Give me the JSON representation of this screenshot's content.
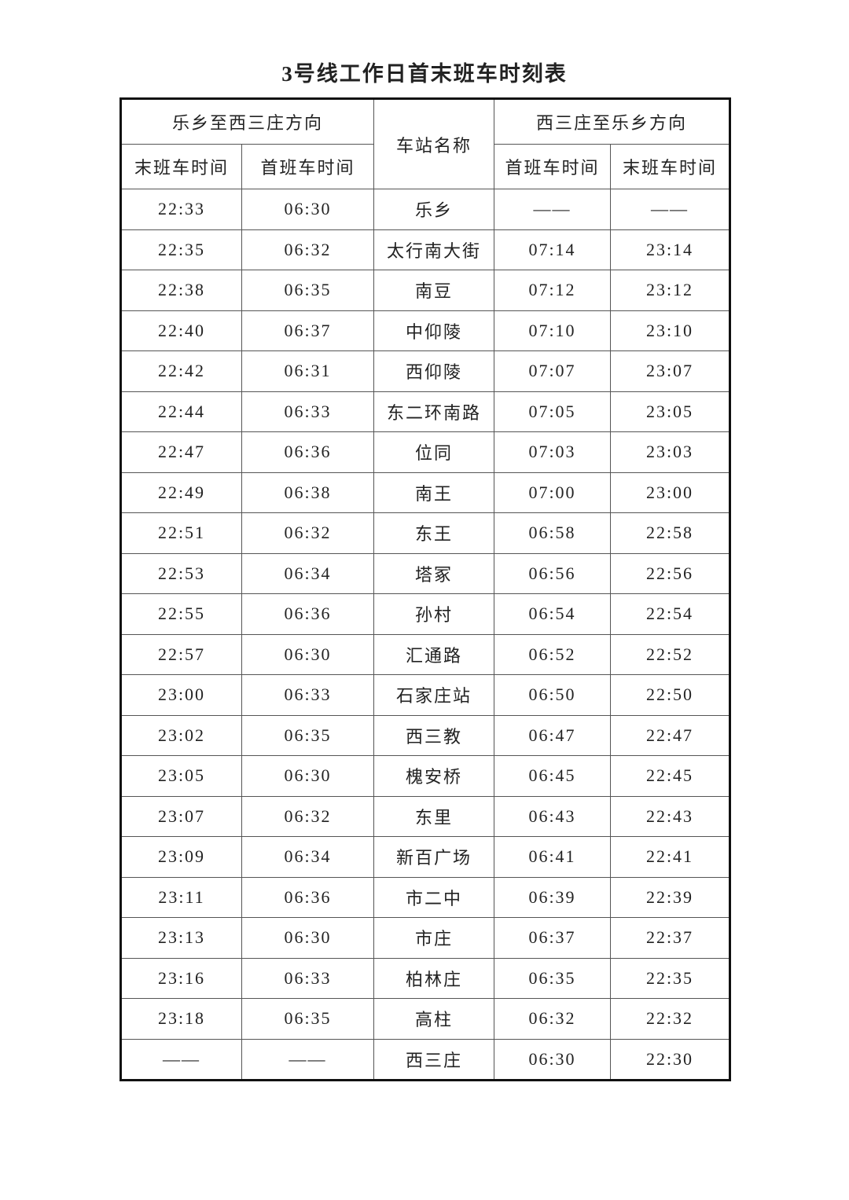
{
  "title": "3号线工作日首末班车时刻表",
  "header": {
    "dir_a": "乐乡至西三庄方向",
    "dir_b": "西三庄至乐乡方向",
    "station": "车站名称",
    "last": "末班车时间",
    "first": "首班车时间"
  },
  "rows": [
    [
      "22:33",
      "06:30",
      "乐乡",
      "——",
      "——"
    ],
    [
      "22:35",
      "06:32",
      "太行南大街",
      "07:14",
      "23:14"
    ],
    [
      "22:38",
      "06:35",
      "南豆",
      "07:12",
      "23:12"
    ],
    [
      "22:40",
      "06:37",
      "中仰陵",
      "07:10",
      "23:10"
    ],
    [
      "22:42",
      "06:31",
      "西仰陵",
      "07:07",
      "23:07"
    ],
    [
      "22:44",
      "06:33",
      "东二环南路",
      "07:05",
      "23:05"
    ],
    [
      "22:47",
      "06:36",
      "位同",
      "07:03",
      "23:03"
    ],
    [
      "22:49",
      "06:38",
      "南王",
      "07:00",
      "23:00"
    ],
    [
      "22:51",
      "06:32",
      "东王",
      "06:58",
      "22:58"
    ],
    [
      "22:53",
      "06:34",
      "塔冢",
      "06:56",
      "22:56"
    ],
    [
      "22:55",
      "06:36",
      "孙村",
      "06:54",
      "22:54"
    ],
    [
      "22:57",
      "06:30",
      "汇通路",
      "06:52",
      "22:52"
    ],
    [
      "23:00",
      "06:33",
      "石家庄站",
      "06:50",
      "22:50"
    ],
    [
      "23:02",
      "06:35",
      "西三教",
      "06:47",
      "22:47"
    ],
    [
      "23:05",
      "06:30",
      "槐安桥",
      "06:45",
      "22:45"
    ],
    [
      "23:07",
      "06:32",
      "东里",
      "06:43",
      "22:43"
    ],
    [
      "23:09",
      "06:34",
      "新百广场",
      "06:41",
      "22:41"
    ],
    [
      "23:11",
      "06:36",
      "市二中",
      "06:39",
      "22:39"
    ],
    [
      "23:13",
      "06:30",
      "市庄",
      "06:37",
      "22:37"
    ],
    [
      "23:16",
      "06:33",
      "柏林庄",
      "06:35",
      "22:35"
    ],
    [
      "23:18",
      "06:35",
      "高柱",
      "06:32",
      "22:32"
    ],
    [
      "——",
      "——",
      "西三庄",
      "06:30",
      "22:30"
    ]
  ]
}
